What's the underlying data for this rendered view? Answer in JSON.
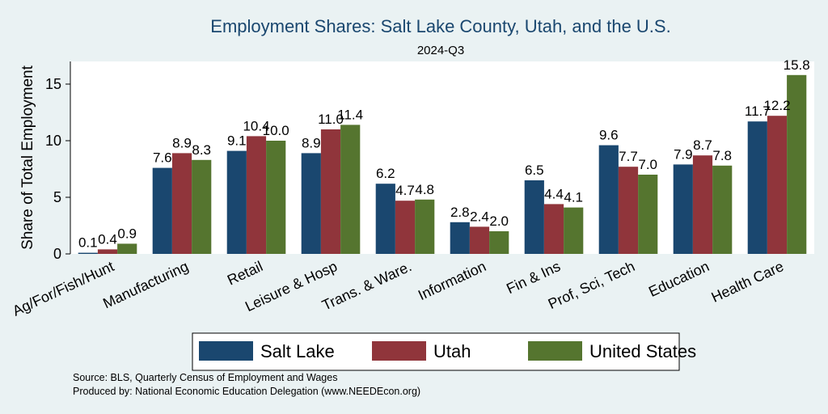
{
  "chart_data": {
    "type": "bar",
    "title": "Employment Shares: Salt Lake County, Utah, and the U.S.",
    "subtitle": "2024-Q3",
    "xlabel": "",
    "ylabel": "Share of Total Employment",
    "ylim": [
      0,
      17
    ],
    "yticks": [
      "0",
      "5",
      "10",
      "15"
    ],
    "categories": [
      "Ag/For/Fish/Hunt",
      "Manufacturing",
      "Retail",
      "Leisure & Hosp",
      "Trans. & Ware.",
      "Information",
      "Fin & Ins",
      "Prof, Sci, Tech",
      "Education",
      "Health Care"
    ],
    "series": [
      {
        "name": "Salt Lake",
        "color": "#1a476f",
        "values": [
          0.1,
          7.6,
          9.1,
          8.9,
          6.2,
          2.8,
          6.5,
          9.6,
          7.9,
          11.7
        ],
        "labels": [
          "0.1",
          "7.6",
          "9.1",
          "8.9",
          "6.2",
          "2.8",
          "6.5",
          "9.6",
          "7.9",
          "11.7"
        ]
      },
      {
        "name": "Utah",
        "color": "#90353b",
        "values": [
          0.4,
          8.9,
          10.4,
          11.0,
          4.7,
          2.4,
          4.4,
          7.7,
          8.7,
          12.2
        ],
        "labels": [
          "0.4",
          "8.9",
          "10.4",
          "11.0",
          "4.7",
          "2.4",
          "4.4",
          "7.7",
          "8.7",
          "12.2"
        ]
      },
      {
        "name": "United States",
        "color": "#55752f",
        "values": [
          0.9,
          8.3,
          10.0,
          11.4,
          4.8,
          2.0,
          4.1,
          7.0,
          7.8,
          15.8
        ],
        "labels": [
          "0.9",
          "8.3",
          "10.0",
          "11.4",
          "4.8",
          "2.0",
          "4.1",
          "7.0",
          "7.8",
          "15.8"
        ]
      }
    ],
    "grid": false,
    "legend_position": "bottom",
    "notes": [
      "Source: BLS, Quarterly Census of Employment and Wages",
      "Produced by: National Economic Education Delegation (www.NEEDEcon.org)"
    ]
  },
  "colors": {
    "background": "#eaf2f3",
    "plot_background": "#ffffff",
    "title": "#1a476f"
  }
}
